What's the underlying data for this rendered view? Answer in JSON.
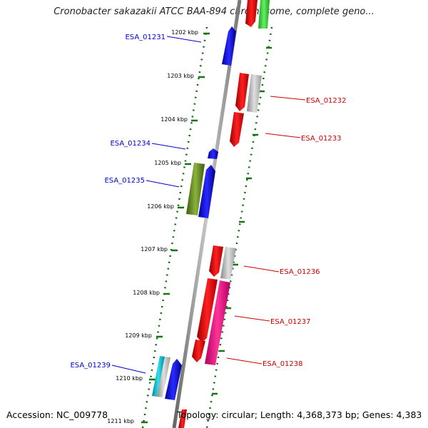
{
  "title": "Cronobacter sakazakii ATCC BAA-894 chromosome, complete geno...",
  "footer": {
    "accession": "Accession: NC_009778",
    "topology": "Topology: circular; Length: 4,368,373 bp; Genes: 4,383"
  },
  "colors": {
    "label_left": "#0000cc",
    "label_right": "#cc0000",
    "axis_tick": "#006600",
    "backbone": "#888888"
  },
  "scale": {
    "ticks": [
      "1202 kbp",
      "1203 kbp",
      "1204 kbp",
      "1205 kbp",
      "1206 kbp",
      "1207 kbp",
      "1208 kbp",
      "1209 kbp",
      "1210 kbp",
      "1211 kbp"
    ]
  },
  "genes": [
    {
      "id": "ESA_01231",
      "side": "left"
    },
    {
      "id": "ESA_01232",
      "side": "right"
    },
    {
      "id": "ESA_01233",
      "side": "right"
    },
    {
      "id": "ESA_01234",
      "side": "left"
    },
    {
      "id": "ESA_01235",
      "side": "left"
    },
    {
      "id": "ESA_01236",
      "side": "right"
    },
    {
      "id": "ESA_01237",
      "side": "right"
    },
    {
      "id": "ESA_01238",
      "side": "right"
    },
    {
      "id": "ESA_01239",
      "side": "left"
    }
  ]
}
